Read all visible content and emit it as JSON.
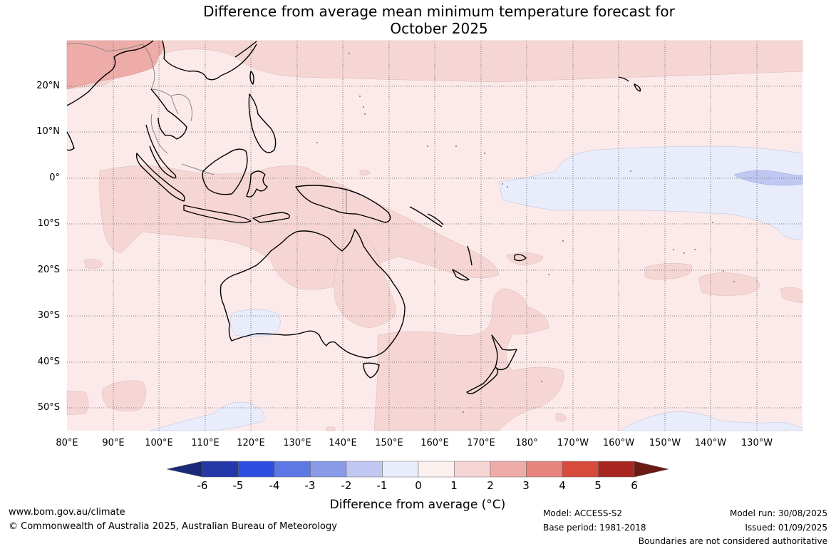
{
  "title": {
    "line1": "Difference from average mean minimum temperature forecast for",
    "line2": "October 2025"
  },
  "map": {
    "lat_labels": [
      "20°N",
      "10°N",
      "0°",
      "10°S",
      "20°S",
      "30°S",
      "40°S",
      "50°S"
    ],
    "lon_labels": [
      "80°E",
      "90°E",
      "100°E",
      "110°E",
      "120°E",
      "130°E",
      "140°E",
      "150°E",
      "160°E",
      "170°E",
      "180°",
      "170°W",
      "160°W",
      "150°W",
      "140°W",
      "130°W"
    ],
    "colors": {
      "ocean_0_1": "#fbeae9",
      "anom_1_2": "#f6d6d5",
      "anom_2_3": "#eeaca8",
      "anom_neg1_0": "#e8ecfb",
      "anom_neg2_neg1": "#c0c8f1",
      "grid": "#555555",
      "coast": "#000000",
      "border": "#888888"
    }
  },
  "colorbar": {
    "tick_labels": [
      "-6",
      "-5",
      "-4",
      "-3",
      "-2",
      "-1",
      "0",
      "1",
      "2",
      "3",
      "4",
      "5",
      "6"
    ],
    "colors": [
      "#1a2a78",
      "#2438a8",
      "#2e4ee0",
      "#5c78e4",
      "#8899e6",
      "#c0c8f1",
      "#e8ecfb",
      "#fdf1f0",
      "#f6d6d5",
      "#eeaca8",
      "#e5857e",
      "#d84a3c",
      "#a82620",
      "#6b1a16"
    ],
    "title": "Difference from average (°C)"
  },
  "footer": {
    "url": "www.bom.gov.au/climate",
    "copyright": "© Commonwealth of Australia 2025, Australian Bureau of Meteorology",
    "model": "Model: ACCESS-S2",
    "base_period": "Base period: 1981-2018",
    "model_run": "Model run: 30/08/2025",
    "issued": "Issued: 01/09/2025",
    "disclaimer": "Boundaries are not considered authoritative"
  }
}
